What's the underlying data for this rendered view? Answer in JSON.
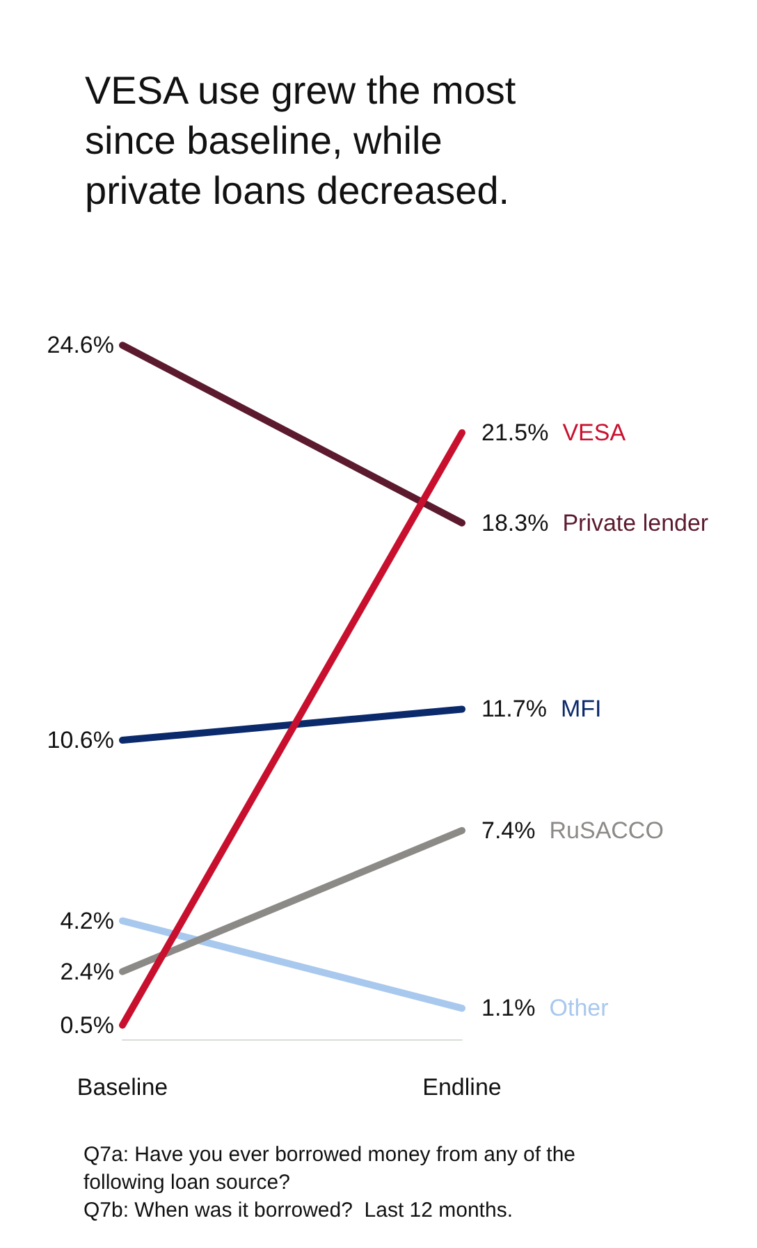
{
  "chart_data": {
    "type": "line",
    "title": "VESA use grew the most since baseline, while private loans decreased.",
    "categories": [
      "Baseline",
      "Endline"
    ],
    "series": [
      {
        "name": "VESA",
        "color": "#c8102e",
        "values": [
          0.5,
          21.5
        ],
        "value_labels": [
          "0.5%",
          "21.5%"
        ]
      },
      {
        "name": "Private lender",
        "color": "#5c1a2e",
        "values": [
          24.6,
          18.3
        ],
        "value_labels": [
          "24.6%",
          "18.3%"
        ]
      },
      {
        "name": "MFI",
        "color": "#0b2a6b",
        "values": [
          10.6,
          11.7
        ],
        "value_labels": [
          "10.6%",
          "11.7%"
        ]
      },
      {
        "name": "RuSACCO",
        "color": "#8c8a87",
        "values": [
          2.4,
          7.4
        ],
        "value_labels": [
          "2.4%",
          "7.4%"
        ]
      },
      {
        "name": "Other",
        "color": "#a8c8ee",
        "values": [
          4.2,
          1.1
        ],
        "value_labels": [
          "4.2%",
          "1.1%"
        ]
      }
    ],
    "marker": "none",
    "line_style": "solid",
    "legend": false,
    "grid": false,
    "tick_labels": "x",
    "annotations": [
      "Q7a: Have you ever borrowed money from any of the following loan source?",
      "Q7b: When was it borrowed?  Last 12 months."
    ]
  }
}
